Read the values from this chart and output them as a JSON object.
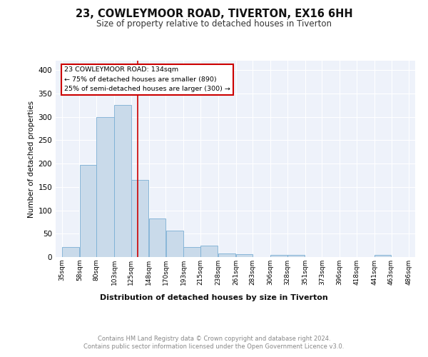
{
  "title": "23, COWLEYMOOR ROAD, TIVERTON, EX16 6HH",
  "subtitle": "Size of property relative to detached houses in Tiverton",
  "xlabel": "Distribution of detached houses by size in Tiverton",
  "ylabel": "Number of detached properties",
  "bar_color": "#c9daea",
  "bar_edge_color": "#7bafd4",
  "background_color": "#eef2fa",
  "grid_color": "#ffffff",
  "red_line_x": 134,
  "annotation_line1": "23 COWLEYMOOR ROAD: 134sqm",
  "annotation_line2": "← 75% of detached houses are smaller (890)",
  "annotation_line3": "25% of semi-detached houses are larger (300) →",
  "footer_line1": "Contains HM Land Registry data © Crown copyright and database right 2024.",
  "footer_line2": "Contains public sector information licensed under the Open Government Licence v3.0.",
  "bin_edges": [
    35,
    58,
    80,
    103,
    125,
    148,
    170,
    193,
    215,
    238,
    261,
    283,
    306,
    328,
    351,
    373,
    396,
    418,
    441,
    463,
    486
  ],
  "bin_counts": [
    22,
    197,
    300,
    325,
    165,
    82,
    57,
    21,
    24,
    7,
    6,
    0,
    4,
    4,
    0,
    0,
    0,
    0,
    4,
    0
  ],
  "ylim": [
    0,
    420
  ],
  "yticks": [
    0,
    50,
    100,
    150,
    200,
    250,
    300,
    350,
    400
  ]
}
